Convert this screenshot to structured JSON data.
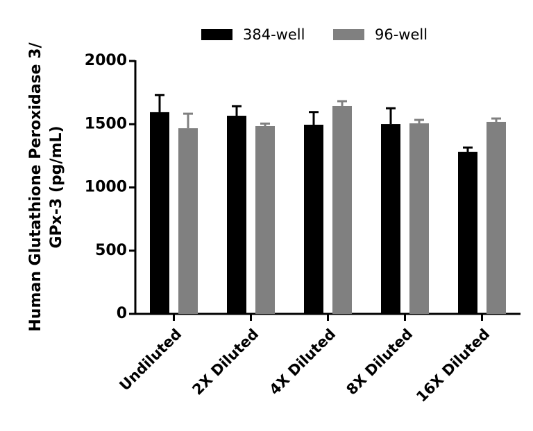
{
  "chart_data": {
    "type": "bar",
    "ylabel": [
      "Human Glutathione Peroxidase 3/",
      "GPx-3 (pg/mL)"
    ],
    "categories": [
      "Undiluted",
      "2X Diluted",
      "4X Diluted",
      "8X Diluted",
      "16X Diluted"
    ],
    "series": [
      {
        "name": "384-well",
        "color": "#000000",
        "values": [
          1595,
          1567,
          1496,
          1501,
          1282
        ],
        "errors": [
          135,
          75,
          100,
          125,
          33
        ]
      },
      {
        "name": "96-well",
        "color": "#808080",
        "values": [
          1468,
          1485,
          1644,
          1507,
          1518
        ],
        "errors": [
          115,
          20,
          38,
          27,
          27
        ]
      }
    ],
    "ylim": [
      0,
      2000
    ],
    "yticks": [
      0,
      500,
      1000,
      1500,
      2000
    ]
  }
}
